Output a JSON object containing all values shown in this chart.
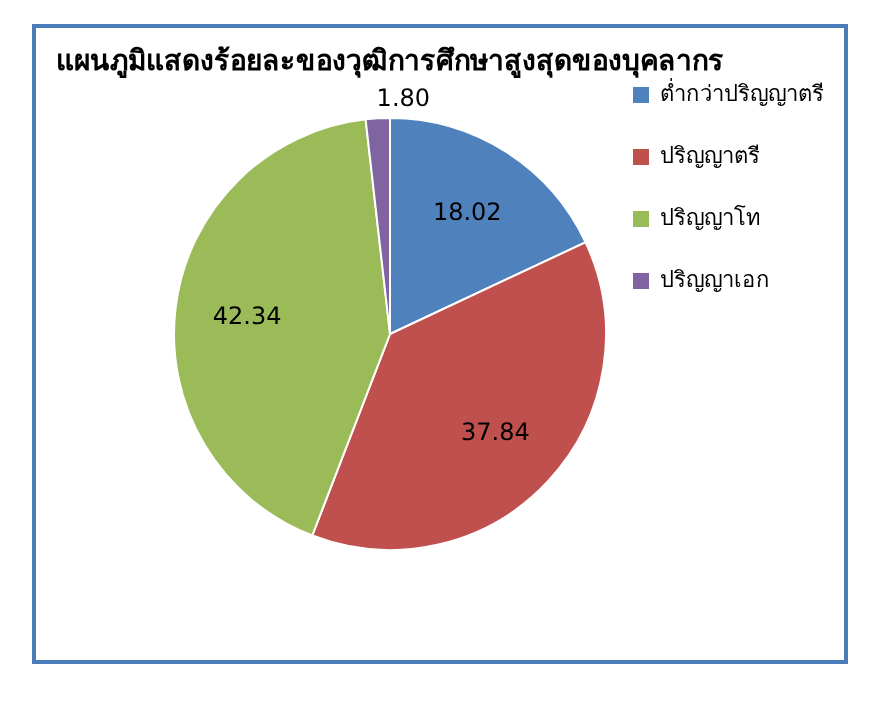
{
  "chart_data": {
    "type": "pie",
    "title": "แผนภูมิแสดงร้อยละของวุฒิการศึกษาสูงสุดของบุคลากร",
    "categories": [
      "ต่ำกว่าปริญญาตรี",
      "ปริญญาตรี",
      "ปริญญาโท",
      "ปริญญาเอก"
    ],
    "values": [
      18.02,
      37.84,
      42.34,
      1.8
    ],
    "value_labels": [
      "18.02",
      "37.84",
      "42.34",
      "1.80"
    ],
    "colors": [
      "#4f81bd",
      "#c0504d",
      "#9bbb59",
      "#8064a2"
    ],
    "legend": "right"
  }
}
